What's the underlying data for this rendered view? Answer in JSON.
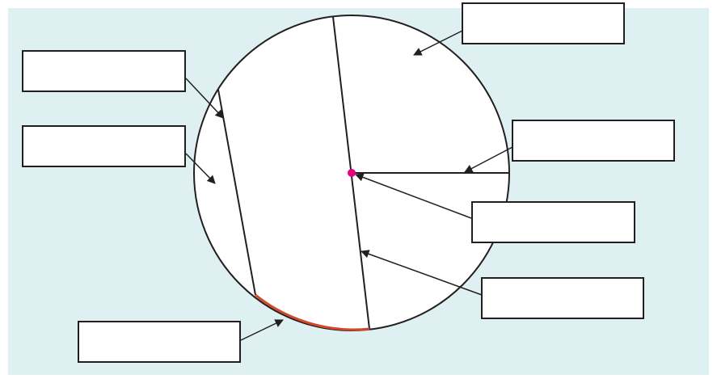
{
  "diagram": {
    "colors": {
      "background": "#dff0f3",
      "outline": "#231f20",
      "arc_highlight": "#d2492a",
      "centre_point": "#e5007e",
      "box_fill": "#ffffff"
    },
    "labels": {
      "top_right": "",
      "left_upper": "",
      "left_lower": "",
      "right_upper": "",
      "right_middle": "",
      "right_lower": "",
      "bottom_left": ""
    }
  }
}
